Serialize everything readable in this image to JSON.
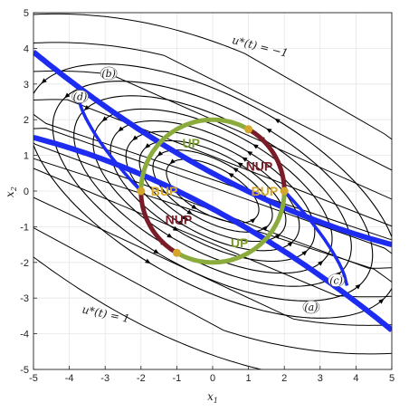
{
  "chart_data": {
    "type": "line",
    "xlabel": "x",
    "xlabel_sub": "1",
    "ylabel": "x",
    "ylabel_sub": "2",
    "xlim": [
      -5,
      5
    ],
    "ylim": [
      -5,
      5
    ],
    "xticks": [
      "-5",
      "-4",
      "-3",
      "-2",
      "-1",
      "0",
      "1",
      "2",
      "3",
      "4",
      "5"
    ],
    "yticks": [
      "-5",
      "-4",
      "-3",
      "-2",
      "-1",
      "0",
      "1",
      "2",
      "3",
      "4",
      "5"
    ],
    "grid": true,
    "annotations": [
      {
        "text": "u*(t) = −1",
        "x": 1.3,
        "y": 3.95
      },
      {
        "text": "u*(t) = 1",
        "x": -3.0,
        "y": -3.55
      }
    ],
    "circle": {
      "center": [
        0,
        0
      ],
      "radius": 2
    },
    "regions": [
      {
        "label": "UP",
        "x": -0.6,
        "y": 1.35,
        "color": "#7a9a2a"
      },
      {
        "label": "NUP",
        "x": 1.3,
        "y": 0.7,
        "color": "#7a1c28"
      },
      {
        "label": "BUP",
        "x": -1.35,
        "y": 0.0,
        "color": "#d4a72c"
      },
      {
        "label": "BUP",
        "x": 1.45,
        "y": 0.0,
        "color": "#d4a72c"
      },
      {
        "label": "NUP",
        "x": -0.95,
        "y": -0.8,
        "color": "#7a1c28"
      },
      {
        "label": "UP",
        "x": 0.75,
        "y": -1.45,
        "color": "#7a9a2a"
      }
    ],
    "curve_tags": [
      {
        "label": "(a)",
        "x": 2.75,
        "y": -3.25
      },
      {
        "label": "(b)",
        "x": -2.9,
        "y": 3.3
      },
      {
        "label": "(c)",
        "x": 3.45,
        "y": -2.5
      },
      {
        "label": "(d)",
        "x": -3.7,
        "y": 2.65
      }
    ],
    "colors": {
      "stream": "#000000",
      "switching_curve": "#1d2cf0",
      "circle_up": "#8bab3d",
      "circle_nup": "#7a1c28",
      "points": "#d4a72c"
    }
  }
}
